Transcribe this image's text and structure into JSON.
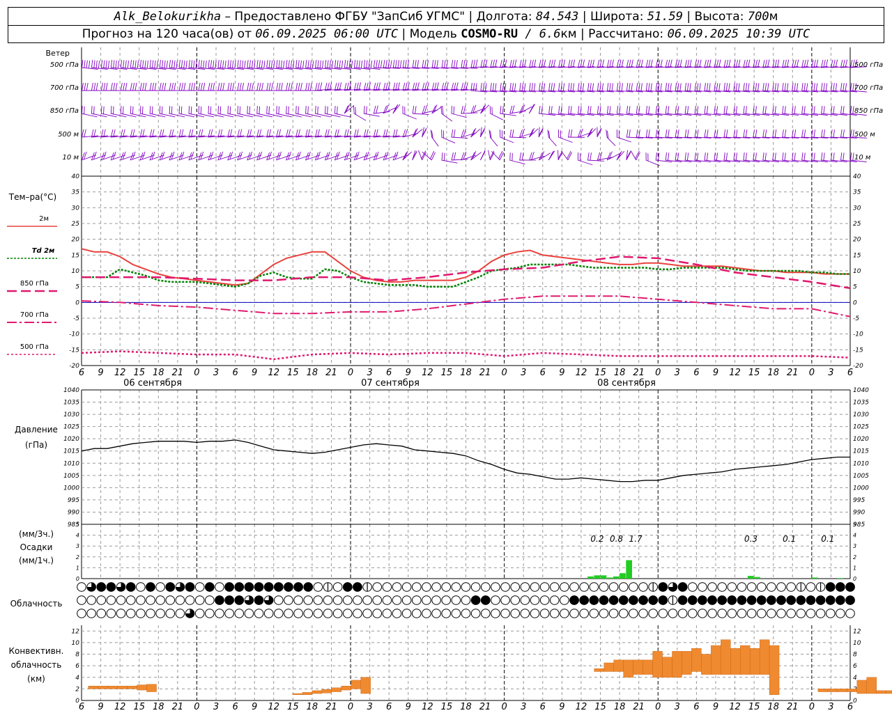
{
  "header": {
    "station": "Alk_Belokurikha",
    "provided": " – Предоставлено ФГБУ \"ЗапСиб УГМС\" | Долгота: ",
    "lon": "84.543",
    "lat_label": " | Широта: ",
    "lat": "51.59",
    "alt_label": " | Высота: ",
    "alt": "700",
    "alt_unit": "м",
    "forecast_prefix": "Прогноз на 120 часа(ов) от ",
    "forecast_start": "06.09.2025 06:00 UTC",
    "model_label": "  | Модель ",
    "model": "COSMO-RU",
    "resolution": " / 6.6",
    "res_unit": "км",
    "calc_label": " | Рассчитано: ",
    "calc_time": "06.09.2025 10:39 UTC"
  },
  "labels": {
    "wind": "Ветер",
    "wind_levels": [
      "500 гПа",
      "700 гПа",
      "850 гПа",
      "500  м",
      "10   м"
    ],
    "temp_title": "Тем–ра(°C)",
    "legend": [
      "2м",
      "Td  2м",
      "850 гПа",
      "700 гПа",
      "500 гПа"
    ],
    "pressure_title": "Давление",
    "pressure_unit": "(гПа)",
    "precip_unit3": "(мм/3ч.)",
    "precip_title": "Осадки",
    "precip_unit1": "(мм/1ч.)",
    "cloud_title": "Облачность",
    "conv_title1": "Конвективн.",
    "conv_title2": "облачность",
    "conv_unit": "(км)",
    "dates": [
      "06 сентября",
      "07 сентября",
      "08 сентября"
    ]
  },
  "colors": {
    "t2m": "#e8413c",
    "td2m": "#008000",
    "t850": "#e0186e",
    "t700": "#e0186e",
    "t500": "#e0186e",
    "wind": "#8000c0",
    "precip": "#22cc22",
    "conv": "#f08a30",
    "grid": "#999999"
  },
  "chart_data": [
    {
      "type": "wind_barbs",
      "levels": [
        "500 гПа",
        "700 гПа",
        "850 гПа",
        "500 м",
        "10 м"
      ],
      "x_hours": [
        0,
        120
      ]
    },
    {
      "type": "line",
      "title": "Тем–ра(°C)",
      "x_ticks": [
        "6",
        "9",
        "12",
        "15",
        "18",
        "21",
        "0",
        "3",
        "6",
        "9",
        "12",
        "15",
        "18",
        "21",
        "0",
        "3",
        "6",
        "9",
        "12",
        "15",
        "18",
        "21",
        "0",
        "3",
        "6",
        "9",
        "12"
      ],
      "ylim": [
        -20,
        40
      ],
      "y_ticks": [
        -20,
        -15,
        -10,
        -5,
        0,
        5,
        10,
        15,
        20,
        25,
        30,
        35,
        40
      ],
      "series": [
        {
          "name": "2м",
          "hours": [
            0,
            2,
            4,
            6,
            8,
            10,
            12,
            14,
            16,
            18,
            20,
            22,
            24,
            26,
            28,
            30,
            32,
            34,
            36,
            38,
            40,
            42,
            44,
            46,
            48,
            50,
            52,
            54,
            56,
            58,
            60,
            62,
            64,
            66,
            68,
            70,
            72,
            74,
            76,
            78,
            80,
            82,
            84,
            86,
            88,
            90,
            92,
            94,
            96,
            98,
            100,
            102,
            104,
            106,
            108,
            110,
            112,
            114,
            116,
            118,
            120
          ],
          "values": [
            17,
            16,
            16,
            14.5,
            12,
            10.5,
            9,
            8,
            7.5,
            7,
            6.5,
            6,
            5.5,
            6,
            9,
            12,
            14,
            15,
            16,
            16,
            13,
            10,
            8,
            7,
            6.5,
            6.5,
            7,
            7,
            7,
            7,
            8,
            10,
            13,
            15,
            16,
            16.5,
            15,
            14.5,
            14,
            13.5,
            13,
            12.5,
            12,
            12,
            12.5,
            12.5,
            12,
            11.5,
            11.5,
            11.5,
            11.5,
            11,
            10.5,
            10,
            10,
            9.5,
            9.5,
            9.5,
            9,
            9,
            9
          ]
        },
        {
          "name": "Td  2м",
          "hours": [
            0,
            2,
            4,
            6,
            8,
            10,
            12,
            14,
            16,
            18,
            20,
            22,
            24,
            26,
            28,
            30,
            32,
            34,
            36,
            38,
            40,
            42,
            44,
            46,
            48,
            50,
            52,
            54,
            56,
            58,
            60,
            62,
            64,
            66,
            68,
            70,
            72,
            74,
            76,
            78,
            80,
            82,
            84,
            86,
            88,
            90,
            92,
            94,
            96,
            98,
            100,
            102,
            104,
            106,
            108,
            110,
            112,
            114,
            116,
            118,
            120
          ],
          "values": [
            8,
            8,
            8,
            10.5,
            9.5,
            8.5,
            7,
            6.5,
            6.5,
            6.5,
            6,
            5.5,
            5,
            6,
            8.5,
            9.5,
            8,
            7.5,
            7.5,
            10.5,
            10,
            8,
            6.5,
            6,
            5.5,
            5.5,
            5.5,
            5,
            5,
            5,
            6.5,
            8,
            10,
            10.5,
            11,
            12,
            12,
            12,
            12,
            11.5,
            11,
            11,
            11,
            11,
            11,
            10.5,
            10.5,
            11,
            11,
            11,
            11,
            10.5,
            10,
            10,
            10,
            10,
            10,
            9.5,
            9.5,
            9,
            9
          ]
        },
        {
          "name": "850 гПа",
          "hours": [
            0,
            6,
            12,
            18,
            24,
            30,
            36,
            42,
            48,
            54,
            60,
            66,
            72,
            78,
            84,
            90,
            96,
            102,
            108,
            114,
            120
          ],
          "values": [
            8,
            8,
            8,
            7.5,
            7,
            7,
            8,
            8,
            7,
            8,
            9.5,
            10.5,
            11,
            13,
            14.5,
            14,
            12,
            9.5,
            8,
            6.5,
            4.5
          ]
        },
        {
          "name": "700 гПа",
          "hours": [
            0,
            6,
            12,
            18,
            24,
            30,
            36,
            42,
            48,
            54,
            60,
            66,
            72,
            78,
            84,
            90,
            96,
            102,
            108,
            114,
            120
          ],
          "values": [
            0.5,
            0,
            -1,
            -1.5,
            -2.5,
            -3.5,
            -3.5,
            -3,
            -3,
            -2,
            -0.5,
            1,
            2,
            2,
            2,
            1,
            0,
            -1,
            -2,
            -2,
            -4.5
          ]
        },
        {
          "name": "500 гПа",
          "hours": [
            0,
            6,
            12,
            18,
            24,
            30,
            36,
            42,
            48,
            54,
            60,
            66,
            72,
            78,
            84,
            90,
            96,
            102,
            108,
            114,
            120
          ],
          "values": [
            -16,
            -15.5,
            -16,
            -16.5,
            -16.5,
            -18,
            -16.5,
            -16,
            -16.5,
            -16,
            -16,
            -17,
            -16,
            -16.5,
            -17,
            -17,
            -17,
            -17,
            -17,
            -17,
            -17.5
          ]
        }
      ]
    },
    {
      "type": "line",
      "title": "Давление",
      "ylabel": "(гПа)",
      "ylim": [
        985,
        1040
      ],
      "y_ticks": [
        985,
        990,
        995,
        1000,
        1005,
        1010,
        1015,
        1020,
        1025,
        1030,
        1035,
        1040
      ],
      "series": [
        {
          "name": "",
          "hours": [
            0,
            2,
            4,
            6,
            8,
            10,
            12,
            14,
            16,
            18,
            20,
            22,
            24,
            26,
            28,
            30,
            32,
            34,
            36,
            38,
            40,
            42,
            44,
            46,
            48,
            50,
            52,
            54,
            56,
            58,
            60,
            62,
            64,
            66,
            68,
            70,
            72,
            74,
            76,
            78,
            80,
            82,
            84,
            86,
            88,
            90,
            92,
            94,
            96,
            98,
            100,
            102,
            104,
            106,
            108,
            110,
            112,
            114,
            116,
            118,
            120
          ],
          "values": [
            1015,
            1016,
            1016,
            1017,
            1018,
            1018.5,
            1019,
            1019,
            1019,
            1018.5,
            1019,
            1019,
            1019.5,
            1018.5,
            1017,
            1015.5,
            1015,
            1014.5,
            1014,
            1014.5,
            1015.5,
            1016.5,
            1017.5,
            1018,
            1017.5,
            1017,
            1015.5,
            1015,
            1014.5,
            1014,
            1013,
            1011,
            1009.5,
            1007.5,
            1006,
            1005.5,
            1004.5,
            1003.5,
            1003.5,
            1004,
            1003.5,
            1003,
            1002.5,
            1002.5,
            1003,
            1003,
            1004,
            1005,
            1005.5,
            1006,
            1006.5,
            1007.5,
            1008,
            1008.5,
            1009,
            1009.5,
            1010.5,
            1011.5,
            1012,
            1012.5,
            1012.5
          ]
        }
      ]
    },
    {
      "type": "bar",
      "title": "Осадки",
      "ylim": [
        0,
        5
      ],
      "y_ticks": [
        0,
        1,
        2,
        3,
        4,
        5
      ],
      "series": [
        {
          "name": "мм/1ч.",
          "hours": [
            80,
            81,
            82,
            83,
            84,
            85,
            86,
            105,
            106,
            115,
            119
          ],
          "values": [
            0.2,
            0.3,
            0.3,
            0.1,
            0.2,
            0.5,
            1.7,
            0.25,
            0.15,
            0.1,
            0.05
          ]
        }
      ],
      "annotations": [
        {
          "hour": 80.5,
          "text": "0.2"
        },
        {
          "hour": 83.5,
          "text": "0.8"
        },
        {
          "hour": 86.5,
          "text": "1.7"
        },
        {
          "hour": 104.5,
          "text": "0.3"
        },
        {
          "hour": 110.5,
          "text": "0.1"
        },
        {
          "hour": 116.5,
          "text": "0.1"
        }
      ]
    },
    {
      "type": "heatmap",
      "title": "Облачность",
      "rows": 3,
      "cols": 79,
      "row1": "0322320202320202222222220102210000000000000000000000000000123200000000000101222222222222222222222222232",
      "row2": "0000000000000022232300000000000000000000220000000022222222221222222222222222222222222222222222222222222",
      "row3": "0000000000030000000000000000000000000000000000000000000000000000000000000000000000000000000002222222222222"
    },
    {
      "type": "bar",
      "title": "Конвективн. облачность",
      "ylabel": "(км)",
      "ylim": [
        0,
        13
      ],
      "y_ticks": [
        0,
        2,
        4,
        6,
        8,
        10,
        12
      ],
      "series": [
        {
          "name": "",
          "bars": [
            [
              1,
              2,
              2,
              2.5
            ],
            [
              2,
              3,
              2,
              2.5
            ],
            [
              3,
              4,
              2,
              2.5
            ],
            [
              4,
              5,
              2,
              2.5
            ],
            [
              5,
              6,
              2,
              2.5
            ],
            [
              6,
              7,
              1.8,
              2.7
            ],
            [
              7,
              8,
              1.5,
              2.8
            ],
            [
              22,
              23,
              1,
              1.2
            ],
            [
              23,
              24,
              1,
              1.4
            ],
            [
              24,
              25,
              1.2,
              1.7
            ],
            [
              25,
              26,
              1.3,
              1.9
            ],
            [
              26,
              27,
              1.5,
              2.2
            ],
            [
              27,
              28,
              1.8,
              2.5
            ],
            [
              28,
              29,
              2,
              3.5
            ],
            [
              29,
              30,
              1.2,
              4
            ],
            [
              53,
              54,
              5,
              5.5
            ],
            [
              54,
              55,
              5,
              6.5
            ],
            [
              55,
              56,
              5,
              7
            ],
            [
              56,
              57,
              4,
              7
            ],
            [
              57,
              58,
              4.5,
              7
            ],
            [
              58,
              59,
              4.5,
              7
            ],
            [
              59,
              60,
              4,
              8.5
            ],
            [
              60,
              61,
              4,
              7.5
            ],
            [
              61,
              62,
              4,
              8.5
            ],
            [
              62,
              63,
              4.5,
              8.5
            ],
            [
              63,
              64,
              5,
              9
            ],
            [
              64,
              65,
              4.5,
              8
            ],
            [
              65,
              66,
              4.5,
              9.5
            ],
            [
              66,
              67,
              4.5,
              10.5
            ],
            [
              67,
              68,
              4.5,
              9
            ],
            [
              68,
              69,
              4.5,
              9.5
            ],
            [
              69,
              70,
              4.5,
              9
            ],
            [
              70,
              71,
              4.5,
              10.5
            ],
            [
              71,
              72,
              1,
              9.5
            ],
            [
              76,
              77,
              1.5,
              2
            ],
            [
              77,
              78,
              1.5,
              2
            ],
            [
              78,
              79,
              1.5,
              2
            ],
            [
              79,
              80,
              1.5,
              2
            ],
            [
              80,
              81,
              1.2,
              3.5
            ],
            [
              81,
              82,
              1.2,
              4
            ],
            [
              82,
              83,
              1.2,
              1.7
            ],
            [
              83,
              84,
              1.2,
              1.7
            ],
            [
              84,
              85,
              1.2,
              1.7
            ],
            [
              85,
              86,
              1.2,
              2
            ],
            [
              86,
              87,
              1.2,
              2.2
            ],
            [
              87,
              88,
              1.2,
              2.7
            ],
            [
              88,
              89,
              1.2,
              2.7
            ]
          ]
        }
      ]
    }
  ]
}
